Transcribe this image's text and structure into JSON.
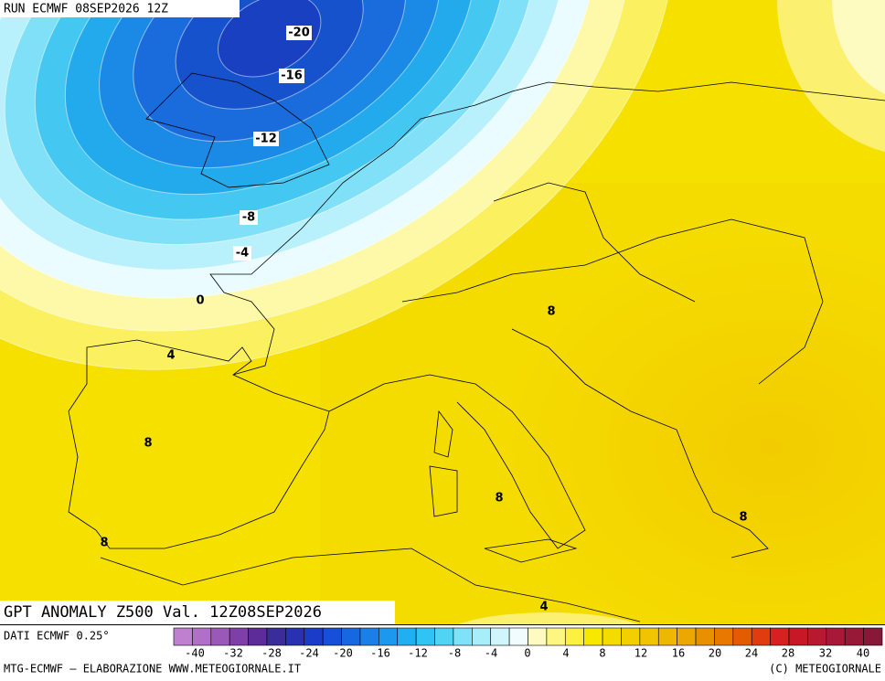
{
  "header": {
    "run": "RUN ECMWF 08SEP2026 12Z"
  },
  "map": {
    "title": "GPT ANOMALY Z500 Val. 12Z08SEP2026",
    "contour_labels": [
      -20,
      -16,
      -12,
      -8,
      -4,
      0,
      4,
      8,
      8,
      8,
      8,
      8,
      4
    ]
  },
  "legend": {
    "source": "DATI ECMWF 0.25°",
    "scale_colors": [
      "#c080d0",
      "#b070c8",
      "#9a58b8",
      "#7e40a8",
      "#5e2c98",
      "#3a2c9a",
      "#2832b0",
      "#1a3cc8",
      "#1650d8",
      "#1668e0",
      "#1a80e8",
      "#1c98ee",
      "#20b0f2",
      "#30c4f4",
      "#50d4f6",
      "#80e2f8",
      "#a8eefa",
      "#d0f6fc",
      "#f0fcfe",
      "#fdfbc0",
      "#fdf680",
      "#fcf040",
      "#f8e800",
      "#f5dc00",
      "#f2d000",
      "#f0c400",
      "#eeb800",
      "#eca800",
      "#ea9000",
      "#e87800",
      "#e45c00",
      "#e03c10",
      "#d82020",
      "#c81828",
      "#b81830",
      "#a81838",
      "#981838",
      "#881838"
    ],
    "scale_labels": [
      -40,
      -32,
      -28,
      -24,
      -20,
      -16,
      -12,
      -8,
      -4,
      0,
      4,
      8,
      12,
      16,
      20,
      24,
      28,
      32,
      40
    ]
  },
  "footer": {
    "credit": "MTG-ECMWF – ELABORAZIONE WWW.METEOGIORNALE.IT",
    "copyright": "(C) METEOGIORNALE"
  }
}
